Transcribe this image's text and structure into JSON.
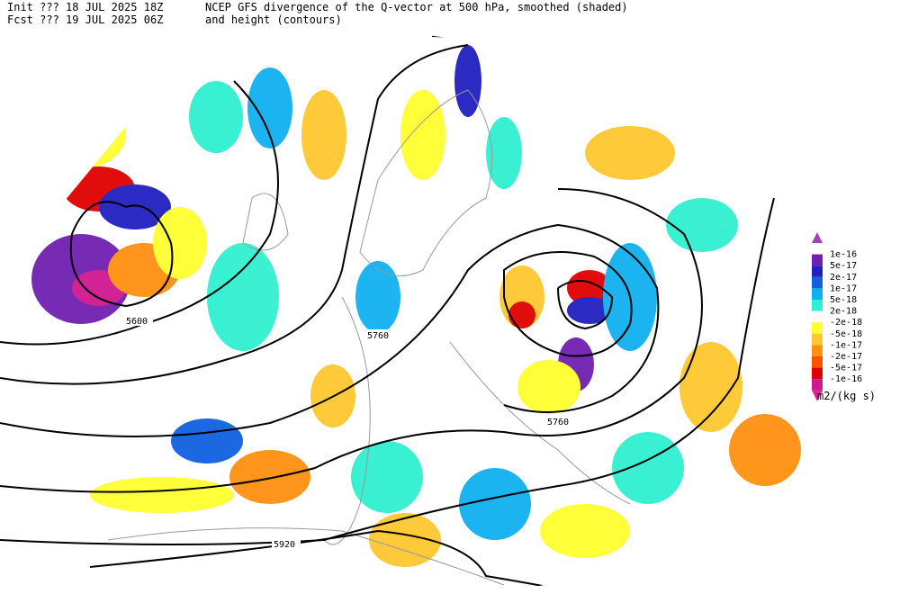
{
  "header": {
    "init_line": "Init  ??? 18 JUL 2025 18Z",
    "fcst_line": "Fcst ??? 19 JUL 2025 06Z",
    "title_line1": "NCEP GFS divergence of the Q-vector at 500 hPa, smoothed (shaded)",
    "title_line2": "and height (contours)"
  },
  "legend": {
    "labels": [
      "1e-16",
      "5e-17",
      "2e-17",
      "1e-17",
      "5e-18",
      "2e-18",
      "-2e-18",
      "-5e-18",
      "-1e-17",
      "-2e-17",
      "-5e-17",
      "-1e-16"
    ],
    "colors": [
      "#a040c0",
      "#7020b0",
      "#2020c0",
      "#1060e0",
      "#10b0f0",
      "#30f0d0",
      "#ffffff",
      "#ffff30",
      "#ffc830",
      "#ff9010",
      "#ff5000",
      "#e00000",
      "#d01890",
      "#e020a0"
    ],
    "units": "m2/(kg s)"
  },
  "contour_labels": [
    "5600",
    "5760",
    "5760",
    "5920"
  ]
}
